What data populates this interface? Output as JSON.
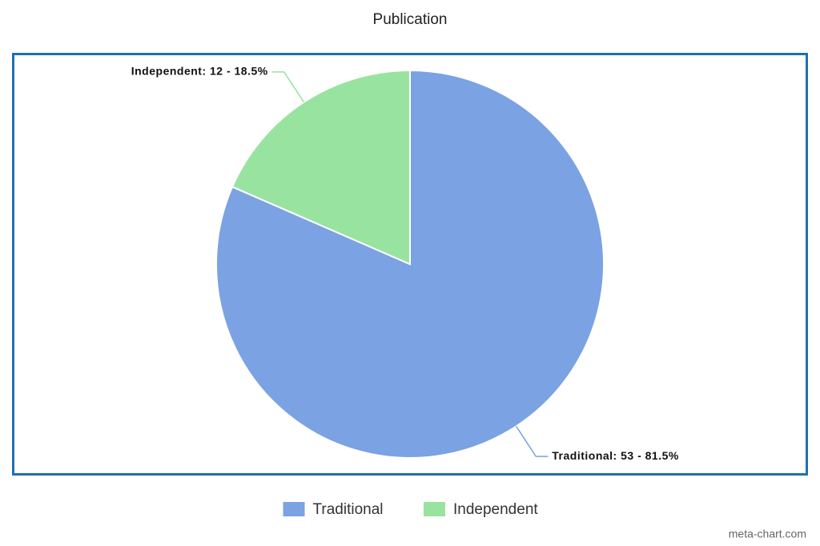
{
  "chart_data": {
    "type": "pie",
    "title": "Publication",
    "categories": [
      "Traditional",
      "Independent"
    ],
    "values": [
      53,
      12
    ],
    "value_labels": [
      "Traditional: 53 - 81.5%",
      "Independent: 12 - 18.5%"
    ],
    "colors": [
      "#7ba2e2",
      "#98e3a0"
    ],
    "legend": "bottom",
    "credit": "meta-chart.com"
  }
}
